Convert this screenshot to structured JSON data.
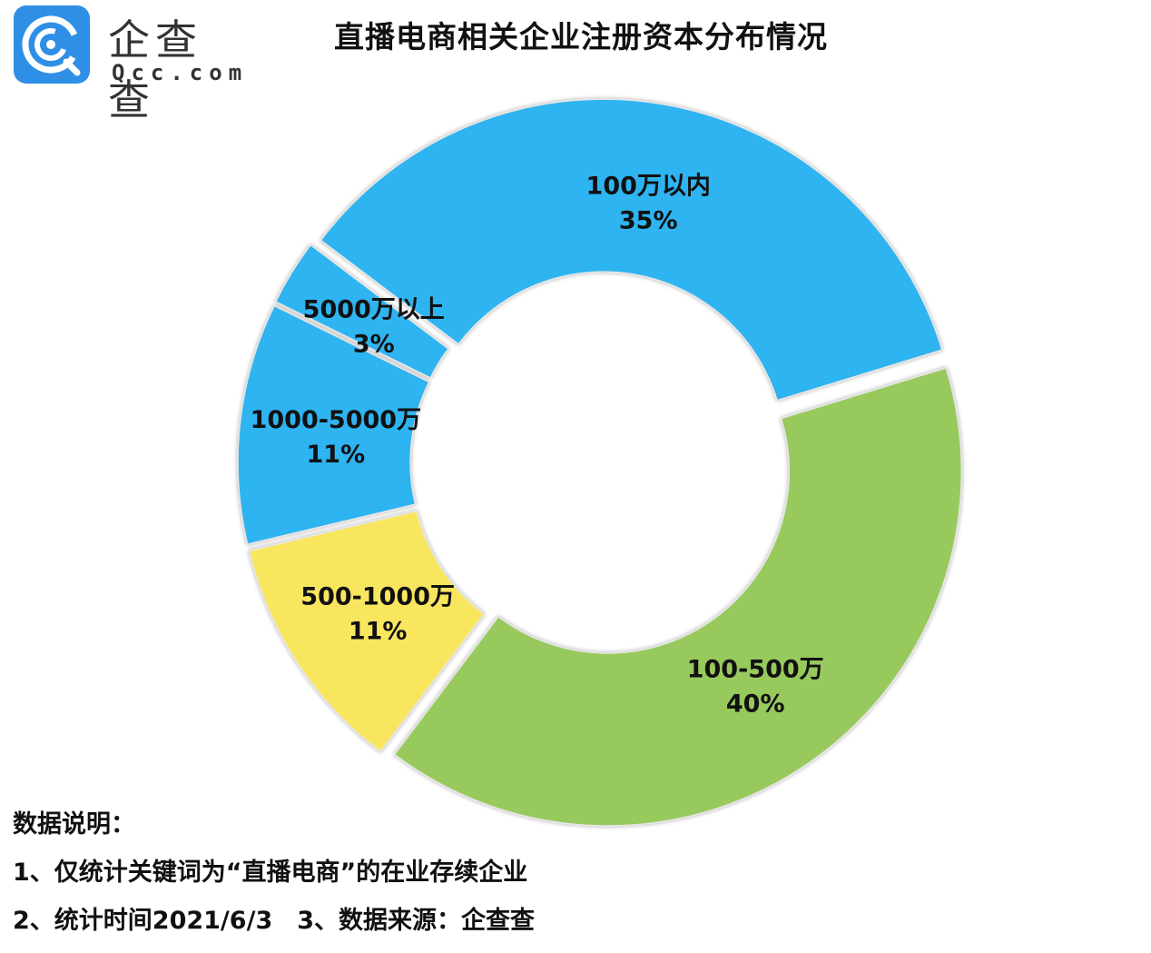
{
  "logo": {
    "cn": "企查查",
    "en": "Qcc.com"
  },
  "chart_data": {
    "type": "pie",
    "title": "直播电商相关企业注册资本分布情况",
    "donut": true,
    "slices": [
      {
        "label": "100万以内",
        "value": 35,
        "value_label": "35%",
        "color": "#2db4f0"
      },
      {
        "label": "100-500万",
        "value": 40,
        "value_label": "40%",
        "color": "#98c95d"
      },
      {
        "label": "500-1000万",
        "value": 11,
        "value_label": "11%",
        "color": "#f9e65e"
      },
      {
        "label": "1000-5000万",
        "value": 11,
        "value_label": "11%",
        "color": "#2db4f0"
      },
      {
        "label": "5000万以上",
        "value": 3,
        "value_label": "3%",
        "color": "#2db4f0"
      }
    ]
  },
  "notes": {
    "heading": "数据说明：",
    "line1": "1、仅统计关键词为“直播电商”的在业存续企业",
    "line2": "2、统计时间2021/6/3　3、数据来源：企查查"
  }
}
